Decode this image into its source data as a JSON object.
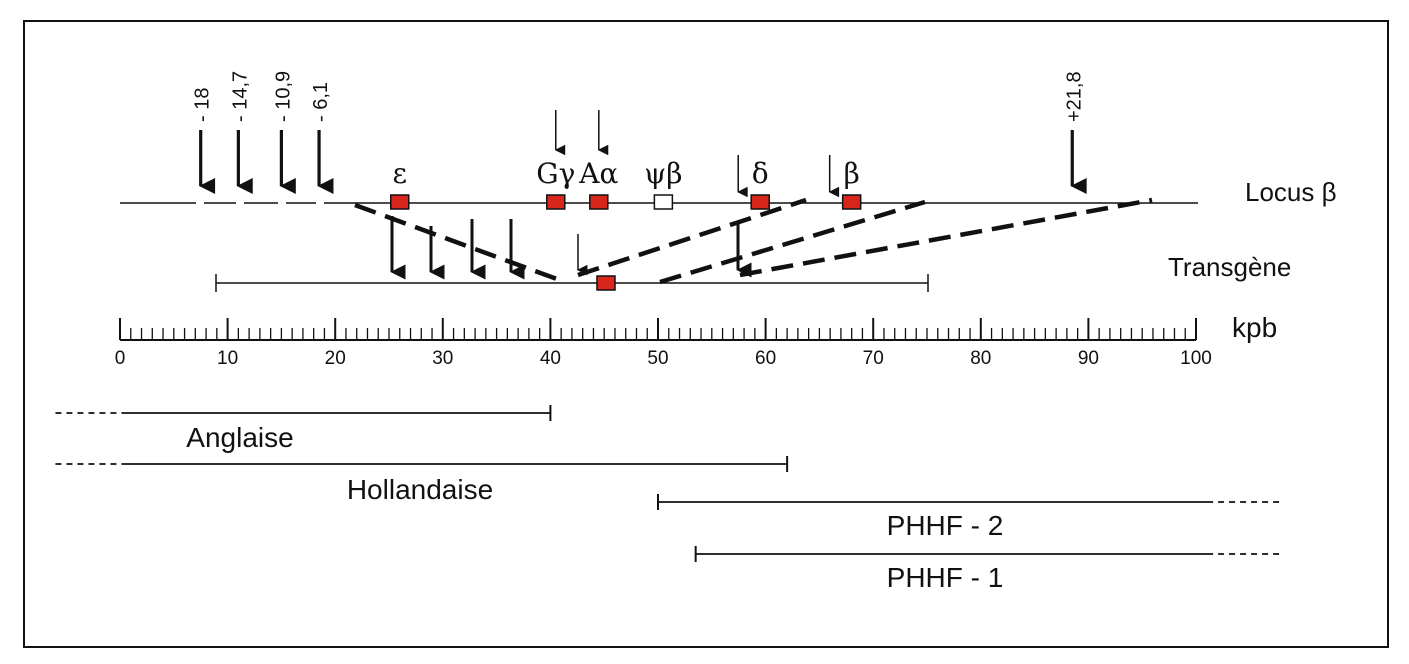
{
  "colors": {
    "gene": "#d9261c",
    "pseudogene": "#ffffff",
    "ink": "#111111"
  },
  "scale": {
    "unit": "kpb",
    "min": 0,
    "max": 100,
    "ticks": [
      "0",
      "10",
      "20",
      "30",
      "40",
      "50",
      "60",
      "70",
      "80",
      "90",
      "100"
    ]
  },
  "locus": {
    "label": "Locus β",
    "start_kb": 0,
    "end_kb": 100,
    "hypersensitive_sites": [
      {
        "label": "- 18",
        "kb": 7.5
      },
      {
        "label": "- 14,7",
        "kb": 11
      },
      {
        "label": "- 10,9",
        "kb": 15
      },
      {
        "label": "- 6,1",
        "kb": 18.5
      },
      {
        "label": "+21,8",
        "kb": 88.5
      }
    ],
    "genes": [
      {
        "label": "ε",
        "kb": 26,
        "type": "gene"
      },
      {
        "label": "Gγ",
        "kb": 40.5,
        "type": "gene",
        "arrow": true
      },
      {
        "label": "Aα",
        "kb": 44.5,
        "type": "gene",
        "arrow": true
      },
      {
        "label": "ψβ",
        "kb": 50.5,
        "type": "pseudogene"
      },
      {
        "label": "δ",
        "kb": 59.5,
        "type": "gene",
        "arrow": true
      },
      {
        "label": "β",
        "kb": 68,
        "type": "gene",
        "arrow": true
      }
    ]
  },
  "transgene": {
    "label": "Transgène",
    "start_kb": 9,
    "end_kb": 75
  },
  "deletions": [
    {
      "label": "Anglaise",
      "start_kb": -6,
      "end_kb": 40,
      "open_left": true
    },
    {
      "label": "Hollandaise",
      "start_kb": -6,
      "end_kb": 62,
      "open_left": true
    },
    {
      "label": "PHHF - 2",
      "start_kb": 50,
      "end_kb": 108,
      "open_right": true
    },
    {
      "label": "PHHF - 1",
      "start_kb": 53.5,
      "end_kb": 108,
      "open_right": true
    }
  ]
}
